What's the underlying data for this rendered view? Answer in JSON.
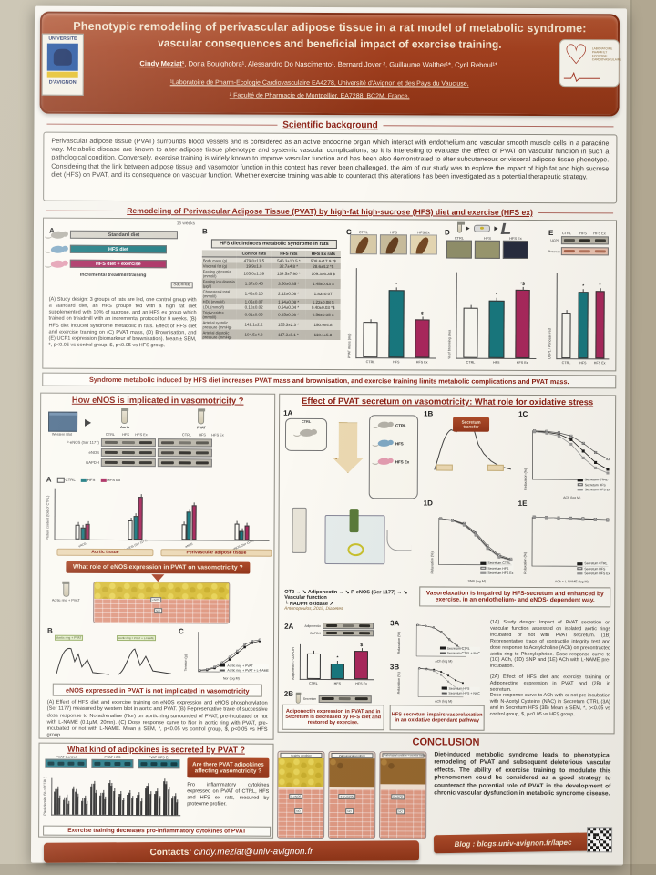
{
  "header": {
    "title1": "Phenotypic remodeling of perivascular adipose tissue in a rat model of metabolic syndrome:",
    "title2": "vascular consequences and beneficial impact of exercise training.",
    "author_first": "Cindy Meziat¹",
    "authors_rest": ", Doria Boulghobra¹, Alessandro Do Nascimento¹, Bernard Jover ², Guillaume Walther¹*, Cyril Reboul¹*.",
    "affil1": "¹Laboratoire de Pharm-Ecologie Cardiovasculaire EA4278, Université d'Avignon et des Pays du Vaucluse,",
    "affil2": "² Faculté de Pharmacie de Montpellier, EA7288, BC2M, France.",
    "logo_left_top": "UNIVERSITÉ",
    "logo_left_bottom": "D'AVIGNON",
    "logo_right_caption": "LABORATOIRE PHARM ET ECOLOGIE CARDIOVASCULAIRE"
  },
  "background": {
    "title": "Scientific background",
    "text": "Perivascular adipose tissue (PVAT) surrounds blood vessels and is considered as an active endocrine organ which interact with endothelium and vascular smooth muscle cells in a paracrine way. Metabolic disease are known to alter adipose tissue phenotype and systemic vascular complications, so it is interesting to evaluate the effect of PVAT on vascular function in such a pathological condition. Conversely, exercise training is widely known to improve vascular function and has been also demonstrated to alter subcutaneous or visceral adipose tissue phenotype. Considering that the link between adipose tissue and vasomotor function in this context has never been challenged, the aim of our study was to explore the impact of high fat and high sucrose diet (HFS) on PVAT, and its consequence on vascular function. Whether exercise training was able to counteract this alterations has been investigated as a potential therapeutic strategy."
  },
  "remodeling": {
    "title": "Remodeling of  Perivascular Adipose Tissue (PVAT) by high-fat high-sucrose (HFS) diet and exercise (HFS ex)",
    "panelA": {
      "label": "A",
      "duration": "15 weeks",
      "diet1": "Standard diet",
      "diet2": "HFS diet",
      "diet3": "HFS diet + exercise",
      "treadmill": "Incremental treadmill training",
      "sacrifice": "Sacrifice"
    },
    "caption": "(A) Study design: 3 groups of rats are led, one control group with a standard diet, an HFS groupe fed with a high fat diet supplemented with 10% of sucrose, and an HFS ex group which trained on treadmill with an incremental protocol for 9 weeks. (B) HFS diet induced syndrome metabolic in rats. Effect of HFS diet and exercise training on (C) PVAT mass, (D) Brownisation, and (E) UCP1 expression (biomarkeur of brownisation). Mean ± SEM, *, p<0.05 vs control group, $, p<0.05 vs HFS group.",
    "panelB": {
      "label": "B",
      "title": "HFS diet induces metabolic syndrome in rats",
      "columns": [
        "",
        "Control rats",
        "HFS rats",
        "HFS Ex rats"
      ],
      "rows": [
        [
          "Body mass (g)",
          "479.8±13.5",
          "546.3±10.5 *",
          "508.6±17.9 *$"
        ],
        [
          "Visceral fat (g)",
          "19.9±1.8",
          "32.7±4.8 *",
          "28.6±4.2 *$"
        ],
        [
          "Fasting glycemia (mmol/l)",
          "105.0±1.39",
          "134.5±7.90 *",
          "109.3±6.35 $"
        ],
        [
          "Fasting insulinemia (µg/l)",
          "1.37±0.45",
          "3.50±0.85 *",
          "1.45±0.43 $"
        ],
        [
          "Cholesterol total (mmol/l)",
          "1.46±0.16",
          "2.12±0.08 *",
          "1.83±0.07"
        ],
        [
          "HDL (mmol/l)",
          "1.05±0.07",
          "1.94±0.08 *",
          "1.22±0.08 $"
        ],
        [
          "LDL (mmol/l)",
          "0.10±0.02",
          "0.64±0.04 *",
          "0.40±0.03 *$"
        ],
        [
          "Triglycerides (mmol/l)",
          "0.61±0.05",
          "0.85±0.08 *",
          "0.56±0.05 $"
        ],
        [
          "Arterial systolic pressure (mmHg)",
          "142.1±2.2",
          "155.3±2.3 *",
          "150.9±4.8"
        ],
        [
          "Arterial diastolic pressure (mmHg)",
          "104.5±4.8",
          "117.3±5.1 *",
          "110.1±5.8"
        ]
      ]
    },
    "panelC": {
      "label": "C",
      "photos": [
        "CTRL",
        "HFS",
        "HFS Ex"
      ]
    },
    "panelD": {
      "label": "D",
      "photos": [
        "CTRL",
        "HFS",
        "HFS Ex"
      ]
    },
    "panelE": {
      "label": "E",
      "wb_row1": "UCP1",
      "wb_row2": "Ponceau Red",
      "cols": [
        "CTRL",
        "HFS",
        "HFS Ex"
      ]
    },
    "banner": "Syndrome metabolic induced by HFS diet increases PVAT mass and brownisation, and exercise training limits metabolic complications and PVAT mass."
  },
  "enos": {
    "title": "How eNOS is implicated in vasomotricity ?",
    "wb_source": "Western Blot",
    "tissue1": "Aorta",
    "tissue2": "PVAT",
    "wb_cols": [
      "CTRL",
      "HFS",
      "HFS Ex"
    ],
    "wb_rows": [
      "P-eNOS (Ser 1177)",
      "eNOS",
      "GAPDH"
    ],
    "panelA_label": "A",
    "legend": [
      "CTRL",
      "HFS",
      "HFS Ex"
    ],
    "question_banner": "What role of eNOS expression in PVAT on vasomotricity ?",
    "ring_label": "Aortic ring + PVAT",
    "panelB_label": "B",
    "trace1_label": "Aortic ring + PVAT",
    "trace2_label": "Aortic ring + PVAT + L-NAME",
    "lname_tag": "L-NAME",
    "panelC_label": "C",
    "diagram_tag1": "eNOS",
    "diagram_tag2": "NO",
    "result_banner": "eNOS expressed in PVAT is not implicated in vasomotricity",
    "caption": "(A) Effect of HFS diet and exercise training on eNOS expression and eNOS phosphorylation (Ser 1177) measured by western blot in aortic and PVAT. (B) Representative trace of successive dose response to Noradrenaline (Nor) on aortic ring surrounded of PVAT, pre-incubated or not with L-NAME (0.1µM, 20mn). (C) Dose response curve to Nor in aortic ring with PVAT, pre-incubated or not with L-NAME. Mean ± SEM, *, p<0.05 vs control group, $, p<0.05 vs HFS group."
  },
  "adipokines": {
    "title": "What kind of adipokines is secreted by PVAT ?",
    "blots": [
      "PVAT Control",
      "PVAT HFS",
      "PVAT HFS Ex"
    ],
    "question": "Are there PVAT adipokines affecting vasomotricity ?",
    "text": "Pro inflammatory cytokines expressed on PVAT of CTRL, HFS and HFS ex rats, mesured by proteome profiler.",
    "banner": "Exercise training decreases pro-inflammatory cytokines of PVAT"
  },
  "secretum": {
    "title": "Effect of PVAT secretum on vasomotricity: What role for oxidative stress",
    "p1a": "1A",
    "p1b": "1B",
    "p1c": "1C",
    "p1d": "1D",
    "p1e": "1E",
    "p2a": "2A",
    "p2b": "2B",
    "p3a": "3A",
    "p3b": "3B",
    "ctrl": "CTRL",
    "hfs": "HFS",
    "hfsex": "HFS Ex",
    "aortic_pvat": "Aortic PVAT",
    "secretum_transfer": "Secretum transfer",
    "vasorelax_banner": "Vasorelaxation is impaired by HFS-secretum and enhanced by exercise, in an endothelium- and eNOS- dependent way.",
    "pathway_start": "OT2",
    "pathway_a": "↘ Adiponectin",
    "pathway_b": "↘ P-eNOS (Ser 1177)",
    "pathway_c": "↘ Vascular function",
    "pathway_d": "└ NADPH oxidase ↗",
    "pathway_cite": "Antonopoulos, 2015, Diabetes",
    "adipo_banner": "Adiponectin expression in PVAT and in Secretum is decreased by HFS diet and restored by exercise.",
    "oxidative_banner": "HFS secretum impairs vasorelaxation in an oxidative dependant pathway",
    "caption1": "(1A) Study design:  Impact of PVAT secretion on vascular function assessed on isolated aortic rings incubated or not with PVAT secretum. (1B) Representative trace of contractile integrity test and dose response to Acetylcholine (ACh) on precontracted aortic ring to Phenylephrine. Dose response curve to (1C) ACh, (1D) SNP and (1E) ACh with L-NAME pre-incubation.",
    "caption2": "(2A) Effect of HFS diet and exercise training on Adiponectine expression in PVAT and (2B) in secretum.",
    "caption3": "Dose response curve to ACh with or not pre-incubation with N-Acetyl Cysteine (NAC) in Secretum CTRL (3A) and in Secretum HFS (3B) Mean ± SEM, *, p<0.05 vs control group, $, p<0.05 vs HFS group.",
    "wb2a_rows": [
      "Adiponectin",
      "GAPDH"
    ],
    "wb2b_label": "Secretum"
  },
  "conclusion": {
    "title": "CONCLUSION",
    "panels": [
      "Healthy condition",
      "Pathological condition",
      "Pathological condition + exercise training"
    ],
    "text": "Diet-induced metabolic syndrome leads to phenotypical remodeling of PVAT and subsequent deleterious vascular effects. The ability of exercise training to modulate this phenomenon could be considered as a good strategy to counteract the potential role of PVAT in the development of chronic vascular dysfunction in metabolic syndrome disease.",
    "blog": "Blog : blogs.univ-avignon.fr/lapec"
  },
  "contacts": {
    "label": "Contacts",
    "email": ": cindy.meziat@univ-avignon.fr"
  },
  "colors": {
    "accent": "#9d3f1f",
    "teal": "#17777e",
    "crimson": "#a8275c",
    "dark_red_text": "#8b2015"
  },
  "chart_data": [
    {
      "id": "pvat_mass",
      "type": "bar",
      "categories": [
        "CTRL",
        "HFS",
        "HFS Ex"
      ],
      "values": [
        400,
        760,
        430
      ],
      "errors": [
        40,
        60,
        45
      ],
      "ylim": [
        0,
        1000
      ],
      "ylabel": "PVAT mass (mg)",
      "annotations": [
        "",
        "*",
        "$"
      ]
    },
    {
      "id": "browning",
      "type": "bar",
      "categories": [
        "CTRL",
        "HFS",
        "HFS Ex"
      ],
      "values": [
        59,
        67,
        80
      ],
      "errors": [
        4,
        3,
        3
      ],
      "ylim": [
        0,
        100
      ],
      "ylabel": "% of browning area",
      "annotations": [
        "",
        "*",
        "*$"
      ]
    },
    {
      "id": "ucp1",
      "type": "bar",
      "categories": [
        "CTRL",
        "HFS",
        "HFS Ex"
      ],
      "values": [
        0.95,
        1.4,
        1.42
      ],
      "errors": [
        0.12,
        0.1,
        0.12
      ],
      "ylim": [
        0,
        1.8
      ],
      "ylabel": "UCP1 / Ponceau red",
      "annotations": [
        "",
        "*",
        "*"
      ]
    },
    {
      "id": "enos_quant",
      "type": "bar",
      "ylabel": "Protein content (fold of CTRL)",
      "ylim": [
        0,
        3.5
      ],
      "group_labels": [
        "eNOS",
        "P-eNOS (Ser 1177)",
        "eNOS",
        "P-eNOS (Ser 1177)"
      ],
      "tissue_labels": [
        "Aortic tissue",
        "Perivascular adipose tissue"
      ],
      "series": [
        {
          "name": "CTRL",
          "values": [
            1.0,
            1.3,
            1.05,
            1.15
          ]
        },
        {
          "name": "HFS",
          "values": [
            0.8,
            1.6,
            1.95,
            0.65
          ]
        },
        {
          "name": "HFS Ex",
          "values": [
            1.05,
            2.95,
            2.4,
            1.0
          ]
        }
      ]
    },
    {
      "id": "nor_curve",
      "type": "line",
      "x": [
        -9,
        -8.5,
        -8,
        -7.5,
        -7,
        -6.5,
        -6,
        -5.5,
        -5
      ],
      "xlabel": "Nor (log M)",
      "ylabel": "Tension (g)",
      "ylim": [
        0,
        3
      ],
      "inverted": false,
      "series": [
        {
          "name": "Aortic ring + PVAT",
          "values": [
            0.1,
            0.15,
            0.3,
            0.6,
            1.0,
            1.5,
            2.0,
            2.35,
            2.5
          ]
        },
        {
          "name": "Aortic ring + PVAT + L-NAME",
          "values": [
            0.12,
            0.2,
            0.4,
            0.75,
            1.2,
            1.7,
            2.2,
            2.5,
            2.6
          ]
        }
      ],
      "show_legend": true
    },
    {
      "id": "ach_1c",
      "type": "line",
      "x": [
        -10,
        -9,
        -8,
        -7,
        -6,
        -5,
        -4
      ],
      "xlabel": "ACh (log M)",
      "ylabel": "Relaxation (%)",
      "ylim": [
        0,
        100
      ],
      "inverted": true,
      "series": [
        {
          "name": "Secretum CTRL",
          "values": [
            2,
            4,
            8,
            20,
            45,
            70,
            85
          ]
        },
        {
          "name": "Secretum HFS",
          "values": [
            1,
            2,
            5,
            12,
            28,
            48,
            62
          ]
        },
        {
          "name": "Secretum HFS Ex",
          "values": [
            3,
            6,
            12,
            30,
            60,
            82,
            93
          ]
        }
      ],
      "show_legend": true
    },
    {
      "id": "snp_1d",
      "type": "line",
      "x": [
        -10,
        -9,
        -8,
        -7,
        -6,
        -5,
        -4
      ],
      "xlabel": "SNP (log M)",
      "ylabel": "Relaxation (%)",
      "ylim": [
        0,
        100
      ],
      "inverted": true,
      "series": [
        {
          "name": "Secretum CTRL",
          "values": [
            2,
            6,
            15,
            38,
            68,
            88,
            96
          ]
        },
        {
          "name": "Secretum HFS",
          "values": [
            2,
            5,
            13,
            34,
            64,
            85,
            94
          ]
        },
        {
          "name": "Secretum HFS Ex",
          "values": [
            3,
            7,
            17,
            40,
            70,
            90,
            97
          ]
        }
      ],
      "show_legend": true
    },
    {
      "id": "ach_lname_1e",
      "type": "line",
      "x": [
        -10,
        -9,
        -8,
        -7,
        -6,
        -5,
        -4
      ],
      "xlabel": "ACh + L-NAME (log M)",
      "ylabel": "Relaxation (%)",
      "ylim": [
        0,
        100
      ],
      "inverted": true,
      "series": [
        {
          "name": "Secretum CTRL",
          "values": [
            0,
            1,
            2,
            3,
            4,
            5,
            6
          ]
        },
        {
          "name": "Secretum HFS",
          "values": [
            0,
            1,
            2,
            2,
            3,
            4,
            5
          ]
        },
        {
          "name": "Secretum HFS Ex",
          "values": [
            0,
            1,
            2,
            3,
            5,
            6,
            7
          ]
        }
      ],
      "show_legend": true
    },
    {
      "id": "adipo_2a",
      "type": "bar",
      "categories": [
        "CTRL",
        "HFS",
        "HFS Ex"
      ],
      "values": [
        1.05,
        0.62,
        1.15
      ],
      "errors": [
        0.12,
        0.08,
        0.12
      ],
      "ylim": [
        0,
        1.4
      ],
      "ylabel": "Adiponectin / GAPDH",
      "annotations": [
        "",
        "*",
        "$"
      ]
    },
    {
      "id": "nac_ctrl_3a",
      "type": "line",
      "x": [
        -10,
        -9,
        -8,
        -7,
        -6,
        -5,
        -4
      ],
      "xlabel": "ACh (log M)",
      "ylabel": "Relaxation (%)",
      "ylim": [
        0,
        100
      ],
      "inverted": true,
      "series": [
        {
          "name": "Secretum CTRL",
          "values": [
            2,
            5,
            10,
            25,
            50,
            72,
            86
          ]
        },
        {
          "name": "Secretum CTRL + NAC",
          "values": [
            2,
            5,
            11,
            27,
            52,
            74,
            87
          ]
        }
      ],
      "show_legend": true
    },
    {
      "id": "nac_hfs_3b",
      "type": "line",
      "x": [
        -10,
        -9,
        -8,
        -7,
        -6,
        -5,
        -4
      ],
      "xlabel": "ACh (log M)",
      "ylabel": "Relaxation (%)",
      "ylim": [
        0,
        100
      ],
      "inverted": true,
      "series": [
        {
          "name": "Secretum HFS",
          "values": [
            1,
            3,
            6,
            14,
            28,
            45,
            55
          ]
        },
        {
          "name": "Secretum HFS + NAC",
          "values": [
            2,
            5,
            11,
            26,
            50,
            72,
            84
          ]
        }
      ],
      "show_legend": true
    },
    {
      "id": "cytokines",
      "type": "bar",
      "ylim": [
        0,
        100
      ],
      "ylabel": "Pixel density (% of CTRL)",
      "group_labels": [
        "",
        "",
        "",
        "",
        "",
        "",
        "",
        "",
        "",
        "",
        "",
        "",
        "",
        ""
      ],
      "series": [
        {
          "name": "CTRL",
          "values": [
            62,
            40,
            70,
            38,
            78,
            52,
            88,
            50,
            54,
            48,
            72,
            58,
            92,
            46
          ]
        },
        {
          "name": "HFS",
          "values": [
            70,
            48,
            62,
            45,
            85,
            60,
            80,
            58,
            60,
            55,
            80,
            64,
            85,
            52
          ]
        },
        {
          "name": "HFS ex",
          "values": [
            45,
            30,
            50,
            30,
            60,
            42,
            65,
            40,
            44,
            38,
            58,
            46,
            70,
            36
          ]
        }
      ],
      "colors": [
        "#1c1c1c",
        "#777777",
        "#e8e5dc"
      ]
    }
  ]
}
